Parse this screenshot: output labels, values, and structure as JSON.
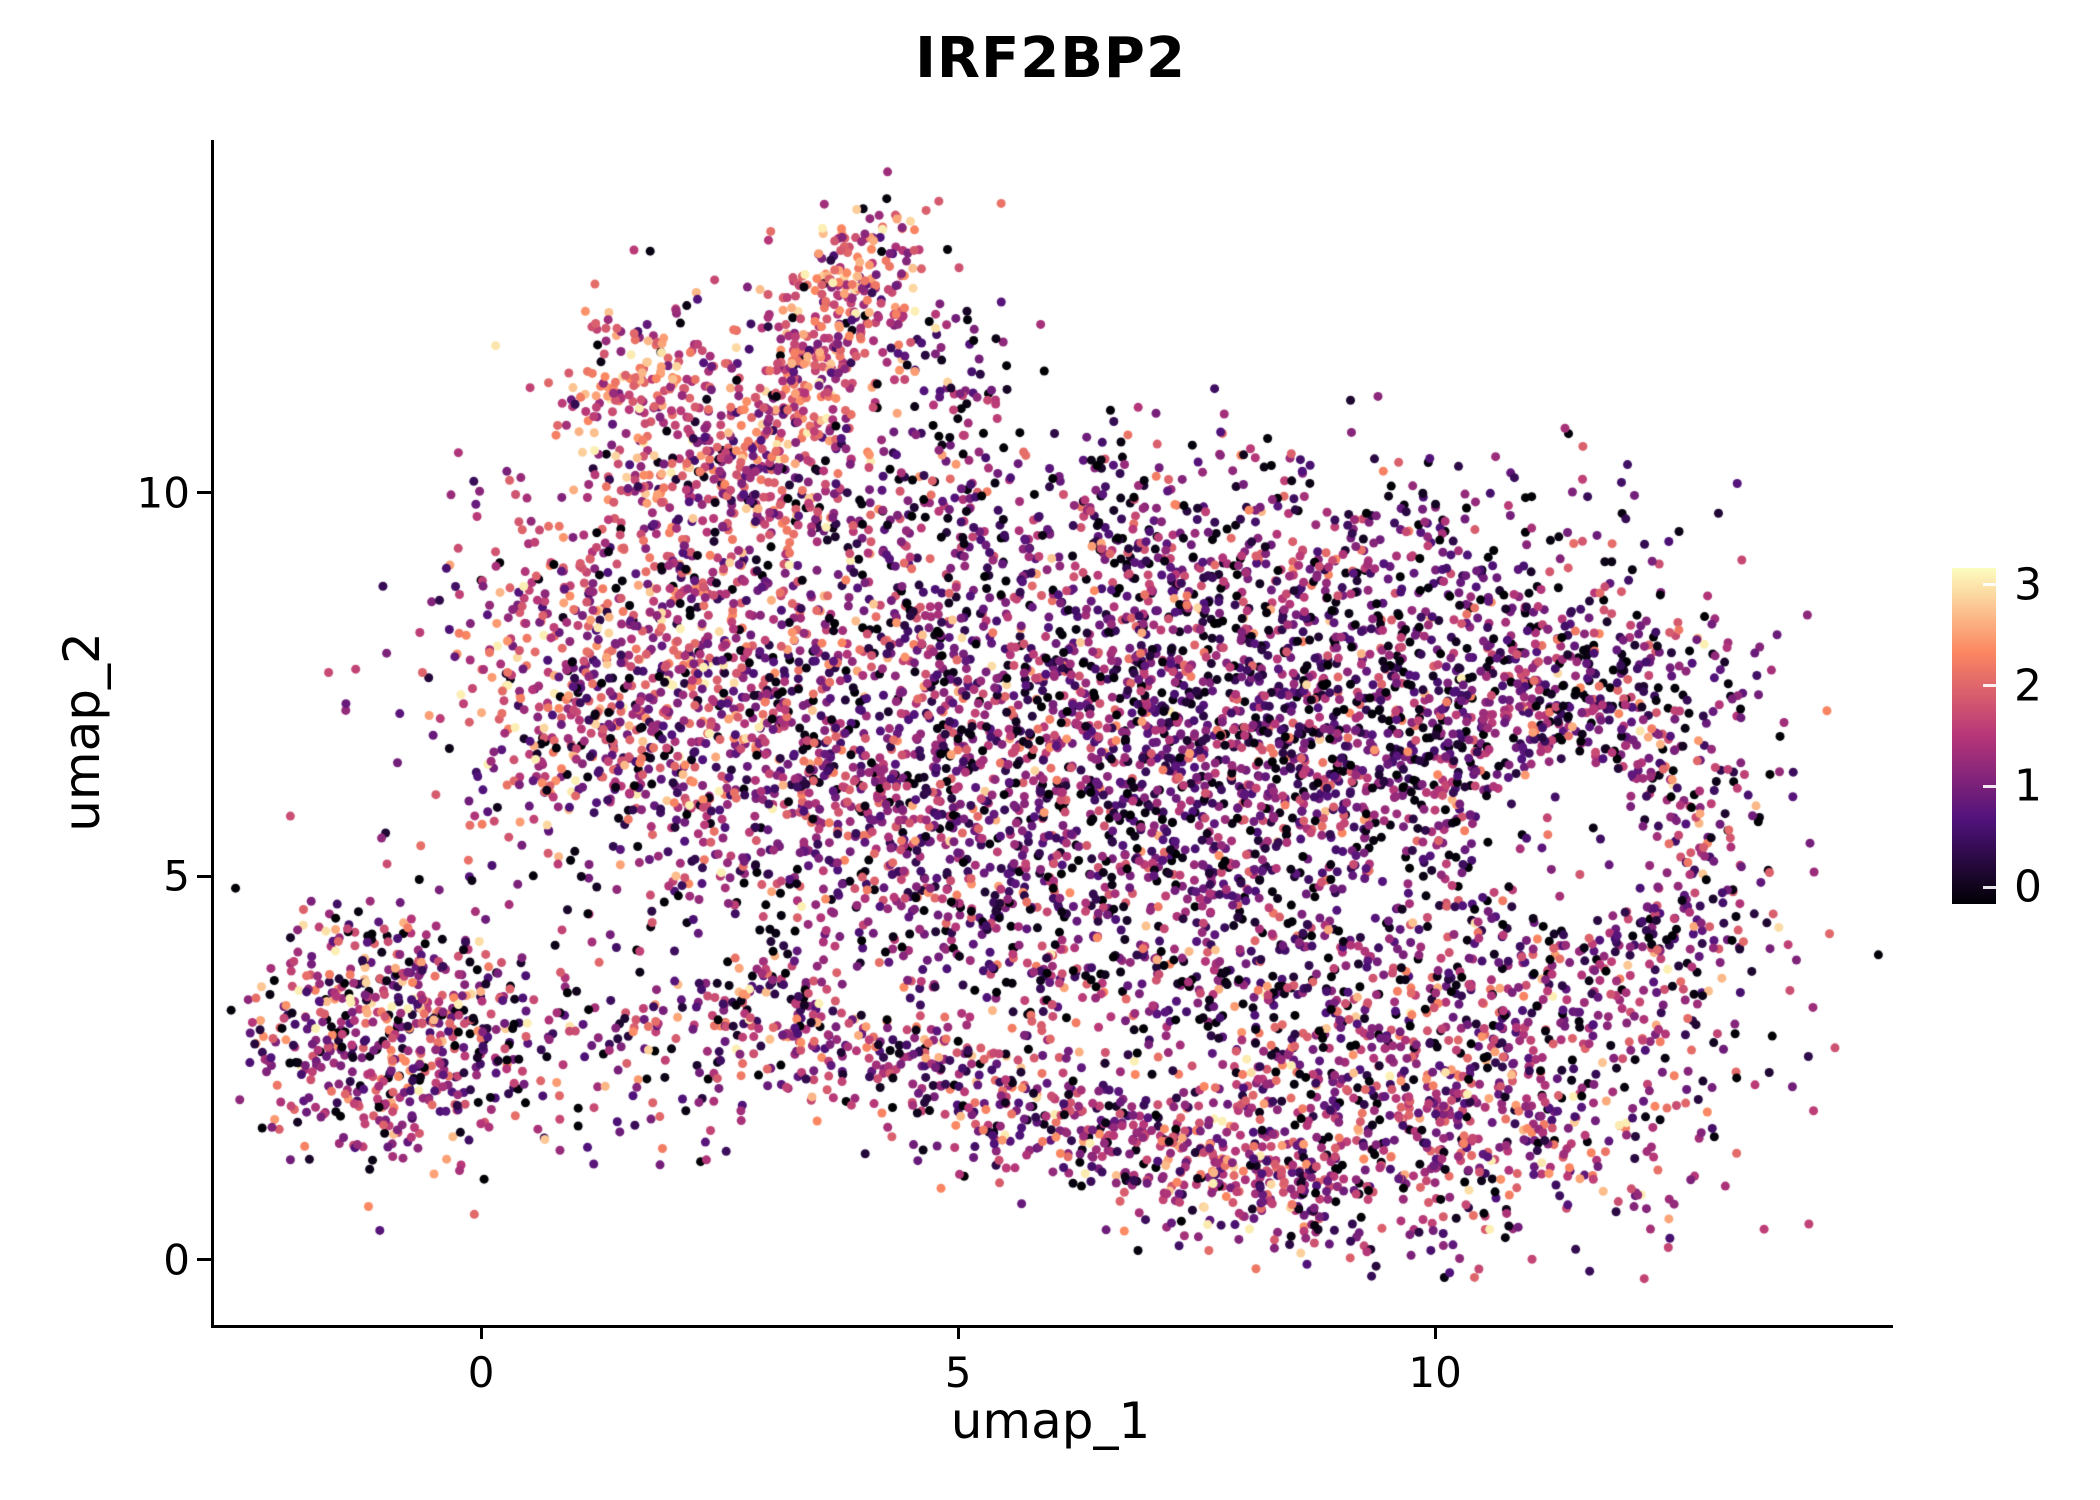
{
  "title": "IRF2BP2",
  "chart_data": {
    "type": "scatter",
    "title": "IRF2BP2",
    "xlabel": "umap_1",
    "ylabel": "umap_2",
    "x_ticks": [
      0,
      5,
      10
    ],
    "y_ticks": [
      0,
      5,
      10
    ],
    "x_range": [
      -2.8,
      14.8
    ],
    "y_range": [
      -0.85,
      14.6
    ],
    "grid": false,
    "legend_position": "right",
    "point_radius_px": 4.5,
    "seed": 42,
    "colorbar": {
      "title": "",
      "ticks": [
        3,
        2,
        1,
        0
      ],
      "tick_fractions_from_top": [
        0.05,
        0.35,
        0.65,
        0.95
      ],
      "min": 0,
      "max": 3.3,
      "stops": [
        {
          "pos": 0.0,
          "color": "#000004"
        },
        {
          "pos": 0.25,
          "color": "#50127B"
        },
        {
          "pos": 0.5,
          "color": "#B63679"
        },
        {
          "pos": 0.75,
          "color": "#FB8761"
        },
        {
          "pos": 1.0,
          "color": "#FCFDBF"
        }
      ]
    },
    "sparse_hole": {
      "cx": 11.45,
      "cy": 5.45,
      "rx": 1.05,
      "ry": 1.05,
      "drop": 0.88
    },
    "clusters": [
      {
        "t": "g",
        "n": 950,
        "cx": 1.7,
        "cy": 7.6,
        "sx": 1.05,
        "sy": 1.25,
        "m": 1.7,
        "s": 0.75,
        "z": 0.07
      },
      {
        "t": "g",
        "n": 1050,
        "cx": 4.3,
        "cy": 6.4,
        "sx": 1.5,
        "sy": 1.6,
        "m": 1.25,
        "s": 0.7,
        "z": 0.1
      },
      {
        "t": "g",
        "n": 1350,
        "cx": 7.0,
        "cy": 6.6,
        "sx": 1.7,
        "sy": 1.7,
        "m": 1.1,
        "s": 0.7,
        "z": 0.13
      },
      {
        "t": "g",
        "n": 900,
        "cx": 9.3,
        "cy": 7.0,
        "sx": 1.3,
        "sy": 1.5,
        "m": 1.05,
        "s": 0.7,
        "z": 0.13
      },
      {
        "t": "g",
        "n": 520,
        "cx": 11.3,
        "cy": 7.2,
        "sx": 1.1,
        "sy": 1.1,
        "m": 1.1,
        "s": 0.7,
        "z": 0.12
      },
      {
        "t": "g",
        "n": 300,
        "cx": 12.35,
        "cy": 5.2,
        "sx": 0.6,
        "sy": 1.3,
        "m": 1.3,
        "s": 0.8,
        "z": 0.08
      },
      {
        "t": "g",
        "n": 420,
        "cx": 6.3,
        "cy": 9.3,
        "sx": 2.1,
        "sy": 0.8,
        "m": 1.2,
        "s": 0.75,
        "z": 0.1
      },
      {
        "t": "b",
        "n": 300,
        "x0": 2.6,
        "y0": 3.4,
        "x1": 5.8,
        "y1": 1.9,
        "jx": 0.45,
        "jy": 0.42,
        "m": 1.45,
        "s": 0.8,
        "z": 0.06
      },
      {
        "t": "b",
        "n": 320,
        "x0": 5.8,
        "y0": 1.9,
        "x1": 8.8,
        "y1": 0.85,
        "jx": 0.5,
        "jy": 0.38,
        "m": 1.45,
        "s": 0.8,
        "z": 0.06
      },
      {
        "t": "g",
        "n": 850,
        "cx": 9.7,
        "cy": 1.9,
        "sx": 1.5,
        "sy": 1.05,
        "m": 1.45,
        "s": 0.8,
        "z": 0.08
      },
      {
        "t": "b",
        "n": 420,
        "x0": 2.75,
        "y0": 10.5,
        "x1": 4.25,
        "y1": 13.2,
        "jx": 0.38,
        "jy": 0.42,
        "m": 2.0,
        "s": 0.65,
        "z": 0.03
      },
      {
        "t": "g",
        "n": 200,
        "cx": 1.7,
        "cy": 11.35,
        "sx": 0.5,
        "sy": 0.6,
        "m": 2.0,
        "s": 0.65,
        "z": 0.04
      },
      {
        "t": "g",
        "n": 230,
        "cx": 3.1,
        "cy": 10.1,
        "sx": 0.7,
        "sy": 0.55,
        "m": 1.5,
        "s": 0.8,
        "z": 0.06
      },
      {
        "t": "g",
        "n": 620,
        "cx": -0.9,
        "cy": 3.0,
        "sx": 0.78,
        "sy": 0.8,
        "m": 1.5,
        "s": 0.85,
        "z": 0.09
      },
      {
        "t": "g",
        "n": 120,
        "cx": 2.0,
        "cy": 2.7,
        "sx": 0.8,
        "sy": 0.75,
        "m": 1.2,
        "s": 0.8,
        "z": 0.1
      },
      {
        "t": "g",
        "n": 260,
        "cx": 10.8,
        "cy": 3.4,
        "sx": 1.3,
        "sy": 0.9,
        "m": 1.2,
        "s": 0.8,
        "z": 0.12
      },
      {
        "t": "b",
        "n": 200,
        "x0": 5.0,
        "y0": 4.1,
        "x1": 9.2,
        "y1": 3.2,
        "jx": 0.55,
        "jy": 0.5,
        "m": 1.1,
        "s": 0.75,
        "z": 0.12
      },
      {
        "t": "g",
        "n": 90,
        "cx": 4.9,
        "cy": 11.6,
        "sx": 0.5,
        "sy": 0.8,
        "m": 1.3,
        "s": 0.7,
        "z": 0.1
      }
    ]
  }
}
